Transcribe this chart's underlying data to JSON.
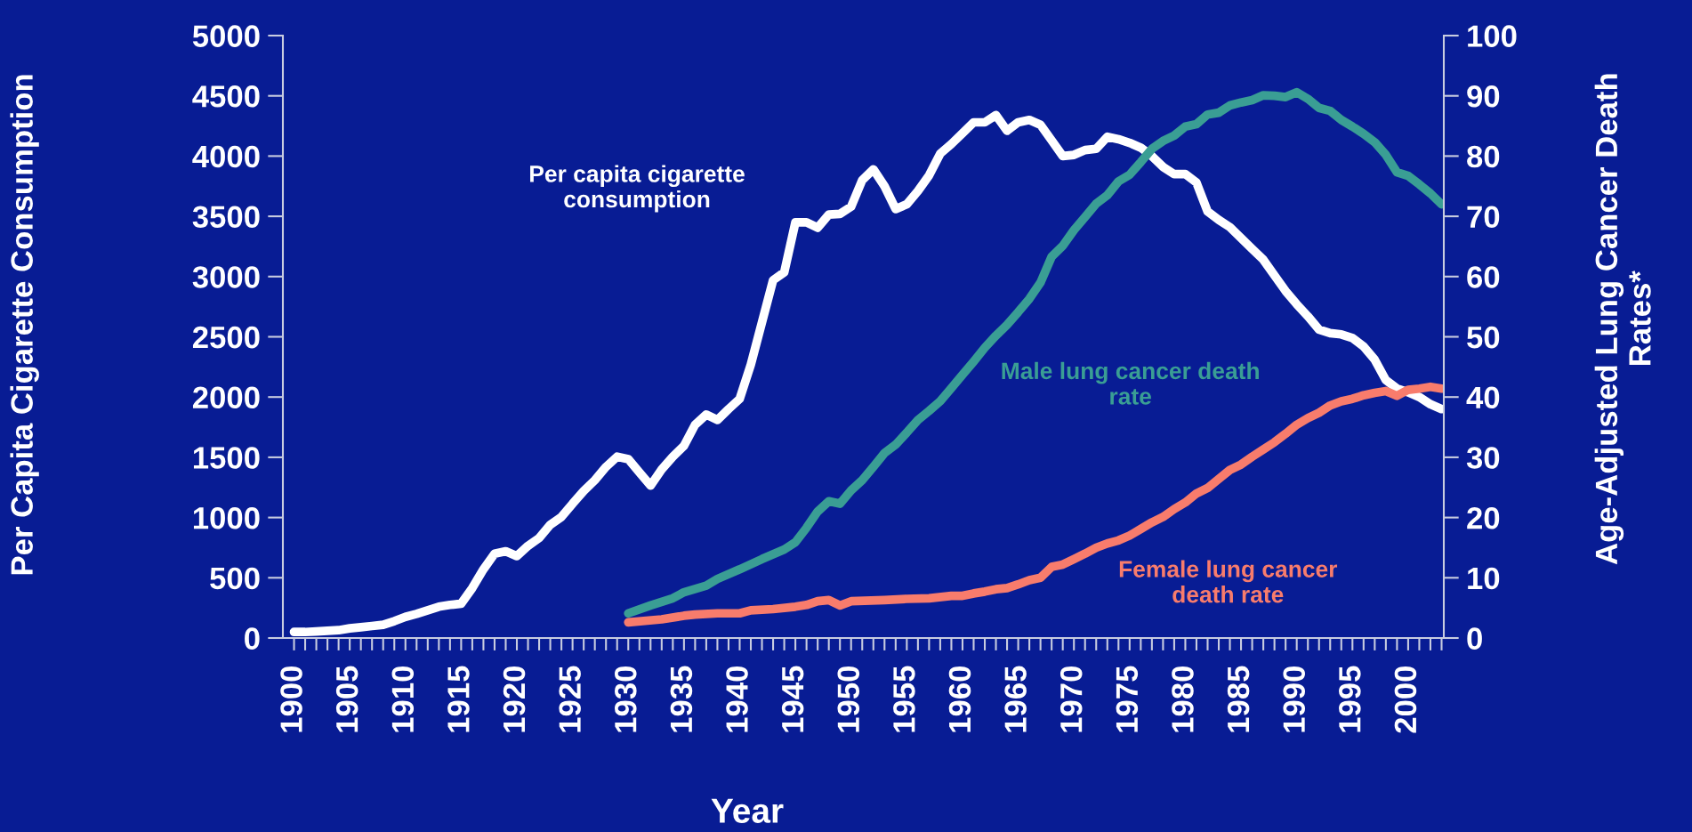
{
  "chart_data": {
    "type": "line",
    "xlabel": "Year",
    "ylabel": "Per Capita Cigarette Consumption",
    "y2label": "Age-Adjusted Lung Cancer Death\nRates*",
    "annotations": [
      "Per capita cigarette\nconsumption",
      "Male lung cancer death\nrate",
      "Female lung cancer\ndeath rate"
    ],
    "series": [
      {
        "name": null,
        "color": "#ffffff",
        "x": [
          1900,
          1901,
          1902,
          1903,
          1904,
          1905,
          1906,
          1907,
          1908,
          1909,
          1910,
          1911,
          1912,
          1913,
          1914,
          1915,
          1916,
          1917,
          1918,
          1919,
          1920,
          1921,
          1922,
          1923,
          1924,
          1925,
          1926,
          1927,
          1928,
          1929,
          1930,
          1931,
          1932,
          1933,
          1934,
          1935,
          1936,
          1937,
          1938,
          1939,
          1940,
          1941,
          1942,
          1943,
          1944,
          1945,
          1946,
          1947,
          1948,
          1949,
          1950,
          1951,
          1952,
          1953,
          1954,
          1955,
          1956,
          1957,
          1958,
          1959,
          1960,
          1961,
          1962,
          1963,
          1964,
          1965,
          1966,
          1967,
          1968,
          1969,
          1970,
          1971,
          1972,
          1973,
          1974,
          1975,
          1976,
          1977,
          1978,
          1979,
          1980,
          1981,
          1982,
          1983,
          1984,
          1985,
          1986,
          1987,
          1988,
          1989,
          1990,
          1991,
          1992,
          1993,
          1994,
          1995,
          1996,
          1997,
          1998,
          1999,
          2000,
          2001,
          2002,
          2003
        ],
        "values": [
          50,
          50,
          55,
          60,
          65,
          80,
          90,
          100,
          110,
          140,
          175,
          200,
          230,
          260,
          275,
          285,
          415,
          570,
          700,
          720,
          680,
          765,
          830,
          940,
          1005,
          1115,
          1220,
          1310,
          1420,
          1505,
          1485,
          1375,
          1265,
          1400,
          1505,
          1595,
          1770,
          1855,
          1810,
          1900,
          1985,
          2270,
          2620,
          2970,
          3035,
          3450,
          3450,
          3405,
          3515,
          3520,
          3580,
          3800,
          3890,
          3750,
          3560,
          3600,
          3710,
          3840,
          4020,
          4100,
          4190,
          4280,
          4280,
          4340,
          4210,
          4280,
          4300,
          4260,
          4130,
          4000,
          4010,
          4050,
          4060,
          4160,
          4140,
          4110,
          4070,
          4000,
          3910,
          3850,
          3850,
          3780,
          3540,
          3470,
          3410,
          3320,
          3230,
          3140,
          3010,
          2880,
          2770,
          2670,
          2560,
          2530,
          2520,
          2490,
          2420,
          2310,
          2140,
          2070,
          2040,
          2000,
          1940,
          1900
        ]
      },
      {
        "name": null,
        "color": "#3a9e94",
        "axis": "y2",
        "x": [
          1930,
          1932,
          1934,
          1935,
          1937,
          1938,
          1940,
          1942,
          1944,
          1945,
          1946,
          1947,
          1948,
          1949,
          1950,
          1951,
          1952,
          1953,
          1954,
          1955,
          1956,
          1957,
          1958,
          1959,
          1960,
          1961,
          1962,
          1963,
          1964,
          1965,
          1966,
          1967,
          1968,
          1969,
          1970,
          1971,
          1972,
          1973,
          1974,
          1975,
          1976,
          1977,
          1978,
          1979,
          1980,
          1981,
          1982,
          1983,
          1984,
          1985,
          1986,
          1987,
          1988,
          1989,
          1990,
          1991,
          1992,
          1993,
          1994,
          1995,
          1996,
          1997,
          1998,
          1999,
          2000,
          2001,
          2002,
          2003
        ],
        "values": [
          4.1,
          5.4,
          6.6,
          7.6,
          8.7,
          9.8,
          11.4,
          13.1,
          14.7,
          15.9,
          18.3,
          21,
          22.7,
          22.3,
          24.5,
          26.2,
          28.4,
          30.7,
          32.1,
          34.1,
          36.2,
          37.7,
          39.3,
          41.5,
          43.7,
          45.9,
          48.2,
          50.2,
          52,
          54.1,
          56.3,
          59,
          63.3,
          65.1,
          67.7,
          69.9,
          72.1,
          73.5,
          75.8,
          76.9,
          79,
          81.2,
          82.5,
          83.4,
          84.9,
          85.3,
          86.9,
          87.2,
          88.4,
          88.9,
          89.3,
          90.1,
          90,
          89.8,
          90.6,
          89.5,
          88,
          87.5,
          86,
          84.9,
          83.7,
          82.3,
          80.2,
          77.3,
          76.7,
          75.3,
          73.8,
          72
        ]
      },
      {
        "name": null,
        "color": "#f87c6c",
        "axis": "y2",
        "x": [
          1930,
          1933,
          1935,
          1936,
          1938,
          1940,
          1941,
          1943,
          1945,
          1946,
          1947,
          1948,
          1949,
          1950,
          1953,
          1955,
          1957,
          1959,
          1960,
          1961,
          1962,
          1963,
          1964,
          1965,
          1966,
          1967,
          1968,
          1969,
          1970,
          1971,
          1972,
          1973,
          1974,
          1975,
          1976,
          1977,
          1978,
          1979,
          1980,
          1981,
          1982,
          1983,
          1984,
          1985,
          1986,
          1987,
          1988,
          1989,
          1990,
          1991,
          1992,
          1993,
          1994,
          1995,
          1996,
          1997,
          1998,
          1999,
          2000,
          2001,
          2002,
          2003
        ],
        "values": [
          2.6,
          3.1,
          3.7,
          3.9,
          4.1,
          4.1,
          4.6,
          4.8,
          5.2,
          5.5,
          6.1,
          6.3,
          5.4,
          6.1,
          6.3,
          6.5,
          6.6,
          7,
          7,
          7.4,
          7.7,
          8.1,
          8.3,
          8.9,
          9.6,
          10,
          11.8,
          12.2,
          13.1,
          14,
          15,
          15.7,
          16.2,
          17,
          18.1,
          19.2,
          20.1,
          21.4,
          22.5,
          24,
          24.9,
          26.4,
          27.9,
          28.8,
          30.1,
          31.3,
          32.5,
          33.9,
          35.4,
          36.5,
          37.4,
          38.6,
          39.3,
          39.7,
          40.3,
          40.7,
          41,
          40.2,
          41.2,
          41.4,
          41.7,
          41.4
        ]
      }
    ],
    "xlim": [
      1899,
      2003.2
    ],
    "xticks": [
      1900,
      {
        "value": 1901,
        "label": null
      },
      {
        "value": 1902,
        "label": null
      },
      {
        "value": 1903,
        "label": null
      },
      {
        "value": 1904,
        "label": null
      },
      1905,
      {
        "value": 1906,
        "label": null
      },
      {
        "value": 1907,
        "label": null
      },
      {
        "value": 1908,
        "label": null
      },
      {
        "value": 1909,
        "label": null
      },
      1910,
      {
        "value": 1911,
        "label": null
      },
      {
        "value": 1912,
        "label": null
      },
      {
        "value": 1913,
        "label": null
      },
      {
        "value": 1914,
        "label": null
      },
      1915,
      {
        "value": 1916,
        "label": null
      },
      {
        "value": 1917,
        "label": null
      },
      {
        "value": 1918,
        "label": null
      },
      {
        "value": 1919,
        "label": null
      },
      1920,
      {
        "value": 1921,
        "label": null
      },
      {
        "value": 1922,
        "label": null
      },
      {
        "value": 1923,
        "label": null
      },
      {
        "value": 1924,
        "label": null
      },
      1925,
      {
        "value": 1926,
        "label": null
      },
      {
        "value": 1927,
        "label": null
      },
      {
        "value": 1928,
        "label": null
      },
      {
        "value": 1929,
        "label": null
      },
      1930,
      {
        "value": 1931,
        "label": null
      },
      {
        "value": 1932,
        "label": null
      },
      {
        "value": 1933,
        "label": null
      },
      {
        "value": 1934,
        "label": null
      },
      1935,
      {
        "value": 1936,
        "label": null
      },
      {
        "value": 1937,
        "label": null
      },
      {
        "value": 1938,
        "label": null
      },
      {
        "value": 1939,
        "label": null
      },
      1940,
      {
        "value": 1941,
        "label": null
      },
      {
        "value": 1942,
        "label": null
      },
      {
        "value": 1943,
        "label": null
      },
      {
        "value": 1944,
        "label": null
      },
      1945,
      {
        "value": 1946,
        "label": null
      },
      {
        "value": 1947,
        "label": null
      },
      {
        "value": 1948,
        "label": null
      },
      {
        "value": 1949,
        "label": null
      },
      1950,
      {
        "value": 1951,
        "label": null
      },
      {
        "value": 1952,
        "label": null
      },
      {
        "value": 1953,
        "label": null
      },
      {
        "value": 1954,
        "label": null
      },
      1955,
      {
        "value": 1956,
        "label": null
      },
      {
        "value": 1957,
        "label": null
      },
      {
        "value": 1958,
        "label": null
      },
      {
        "value": 1959,
        "label": null
      },
      1960,
      {
        "value": 1961,
        "label": null
      },
      {
        "value": 1962,
        "label": null
      },
      {
        "value": 1963,
        "label": null
      },
      {
        "value": 1964,
        "label": null
      },
      1965,
      {
        "value": 1966,
        "label": null
      },
      {
        "value": 1967,
        "label": null
      },
      {
        "value": 1968,
        "label": null
      },
      {
        "value": 1969,
        "label": null
      },
      1970,
      {
        "value": 1971,
        "label": null
      },
      {
        "value": 1972,
        "label": null
      },
      {
        "value": 1973,
        "label": null
      },
      {
        "value": 1974,
        "label": null
      },
      1975,
      {
        "value": 1976,
        "label": null
      },
      {
        "value": 1977,
        "label": null
      },
      {
        "value": 1978,
        "label": null
      },
      {
        "value": 1979,
        "label": null
      },
      1980,
      {
        "value": 1981,
        "label": null
      },
      {
        "value": 1982,
        "label": null
      },
      {
        "value": 1983,
        "label": null
      },
      {
        "value": 1984,
        "label": null
      },
      1985,
      {
        "value": 1986,
        "label": null
      },
      {
        "value": 1987,
        "label": null
      },
      {
        "value": 1988,
        "label": null
      },
      {
        "value": 1989,
        "label": null
      },
      1990,
      {
        "value": 1991,
        "label": null
      },
      {
        "value": 1992,
        "label": null
      },
      {
        "value": 1993,
        "label": null
      },
      {
        "value": 1994,
        "label": null
      },
      1995,
      {
        "value": 1996,
        "label": null
      },
      {
        "value": 1997,
        "label": null
      },
      {
        "value": 1998,
        "label": null
      },
      {
        "value": 1999,
        "label": null
      },
      2000,
      {
        "value": 2001,
        "label": null
      },
      {
        "value": 2002,
        "label": null
      },
      {
        "value": 2003,
        "label": null
      }
    ],
    "ylim": [
      0,
      5000
    ],
    "yticks": [
      0,
      500,
      1000,
      1500,
      2000,
      2500,
      3000,
      3500,
      4000,
      4500,
      5000
    ],
    "y2lim": [
      0,
      100
    ],
    "y2ticks": [
      0,
      10,
      20,
      30,
      40,
      50,
      60,
      70,
      80,
      90,
      100
    ],
    "grid": false,
    "legend": false,
    "marker": "none",
    "line_style": "solid"
  }
}
